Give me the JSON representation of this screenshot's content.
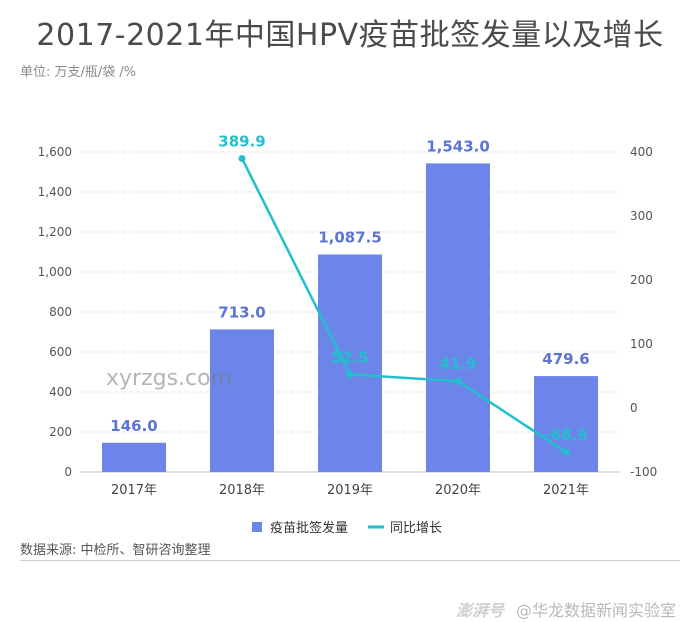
{
  "header": {
    "title": "2017-2021年中国HPV疫苗批签发量以及增长",
    "unit": "单位: 万支/瓶/袋  /%"
  },
  "footer": {
    "source": "数据来源: 中检所、智研咨询整理",
    "watermark_brand": "澎湃号",
    "watermark_account": "@华龙数据新闻实验室",
    "watermark_site": "xyrzgs.com"
  },
  "colors": {
    "bar": "#6b86e8",
    "line": "#22bfcf",
    "bar_label": "#5b74d6",
    "line_label": "#22bfcf"
  },
  "chart_data": {
    "type": "bar",
    "categories": [
      "2017年",
      "2018年",
      "2019年",
      "2020年",
      "2021年"
    ],
    "series": [
      {
        "name": "疫苗批签发量",
        "type": "bar",
        "axis": "left",
        "values": [
          146.0,
          713.0,
          1087.5,
          1543.0,
          479.6
        ],
        "labels": [
          "146.0",
          "713.0",
          "1,087.5",
          "1,543.0",
          "479.6"
        ]
      },
      {
        "name": "同比增长",
        "type": "line",
        "axis": "right",
        "values": [
          null,
          389.9,
          52.5,
          41.9,
          -68.9
        ],
        "labels": [
          "",
          "389.9",
          "52.5",
          "41.9",
          "-68.9"
        ]
      }
    ],
    "y_left": {
      "min": 0,
      "max": 1600,
      "ticks": [
        "0",
        "200",
        "400",
        "600",
        "800",
        "1,000",
        "1,200",
        "1,400",
        "1,600"
      ]
    },
    "y_right": {
      "min": -100,
      "max": 400,
      "ticks": [
        "-100",
        "0",
        "100",
        "200",
        "300",
        "400"
      ]
    },
    "grid": true,
    "legend": "bottom-center"
  }
}
